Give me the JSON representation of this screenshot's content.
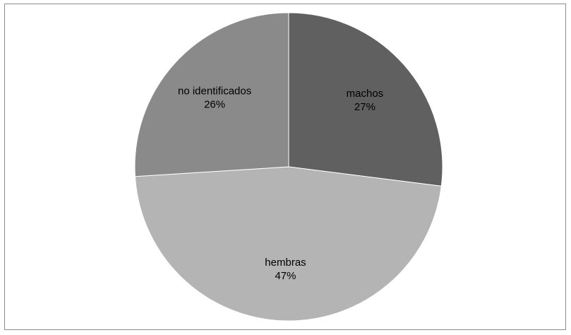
{
  "chart_data": {
    "type": "pie",
    "title": "",
    "start_angle_deg": 0,
    "direction": "clockwise",
    "legend": "none",
    "slices": [
      {
        "name": "machos",
        "value": 27,
        "label": "27%",
        "color": "#606060"
      },
      {
        "name": "hembras",
        "value": 47,
        "label": "47%",
        "color": "#b4b4b4"
      },
      {
        "name": "no identificados",
        "value": 26,
        "label": "26%",
        "color": "#8a8a8a"
      }
    ]
  }
}
